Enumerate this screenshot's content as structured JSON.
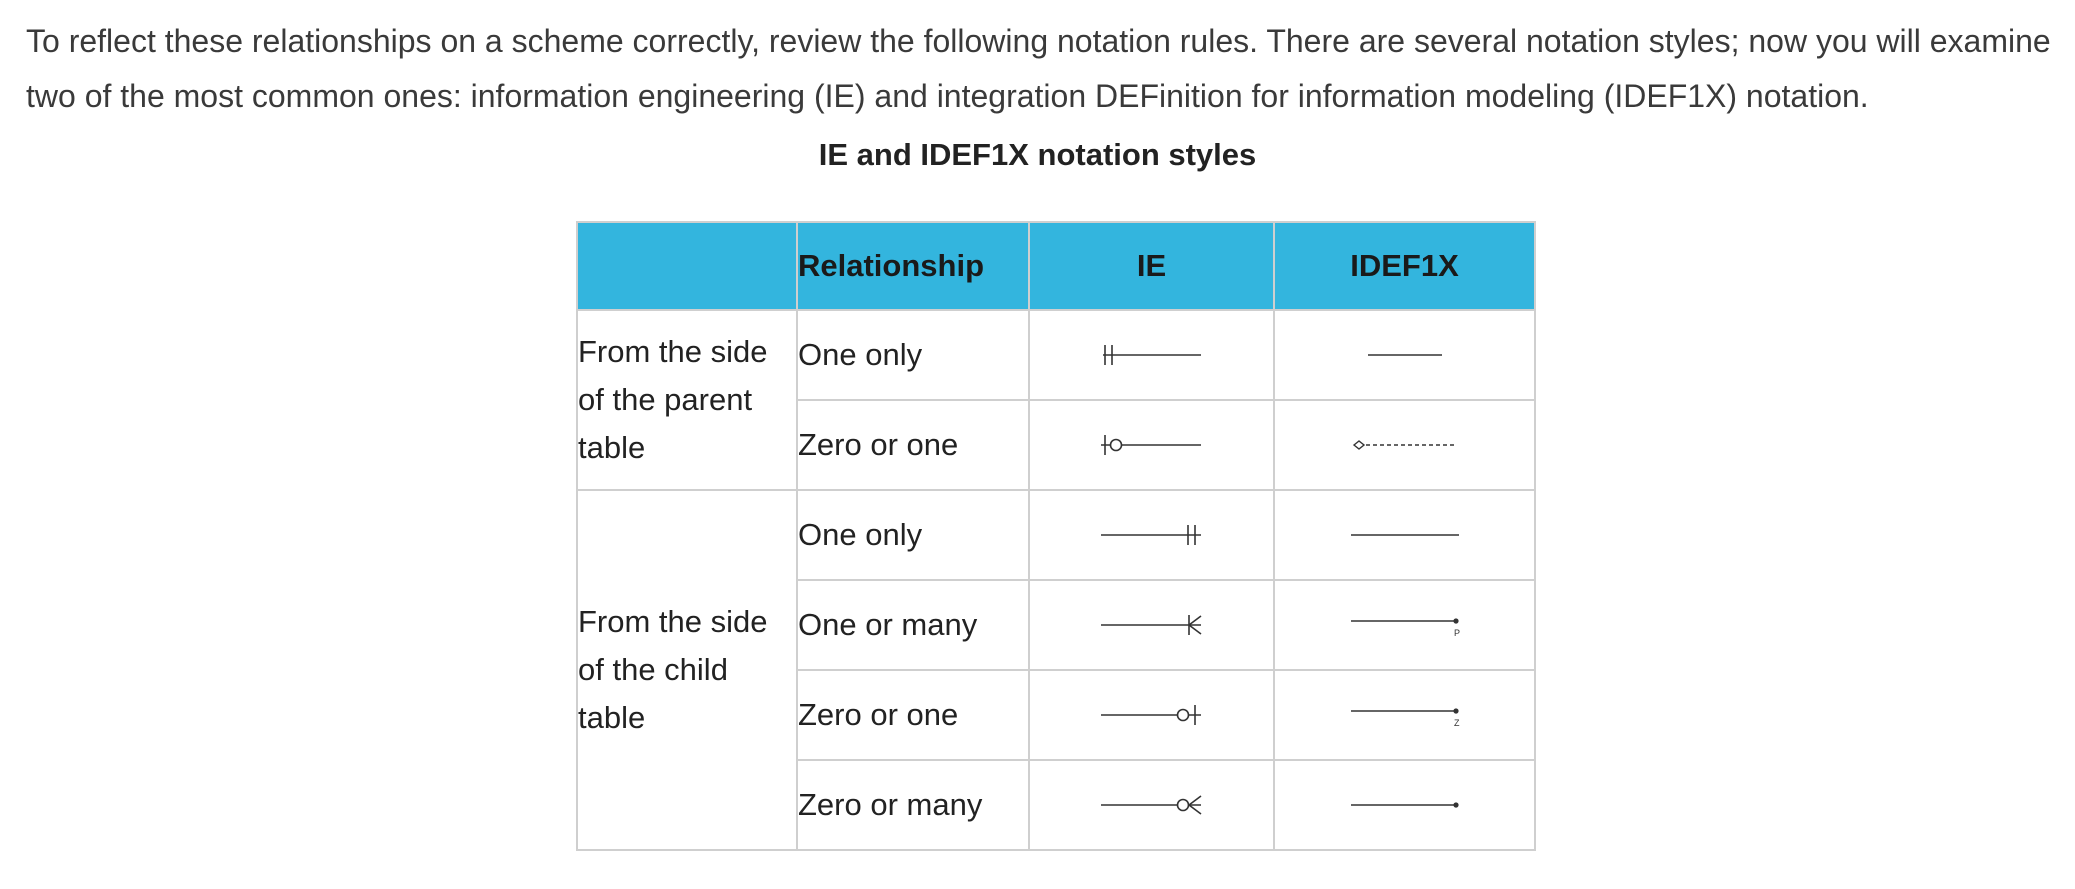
{
  "intro_text": "To reflect these relationships on a scheme correctly, review the following notation rules. There are several notation styles; now you will examine two of the most common ones: information engineering (IE) and integration DEFinition for information modeling (IDEF1X) notation.",
  "table_title": "IE and IDEF1X notation styles",
  "table": {
    "headers": {
      "blank": "",
      "relationship": "Relationship",
      "ie": "IE",
      "idef1x": "IDEF1X"
    },
    "groups": [
      {
        "label": "From the side of the parent table",
        "rows": [
          {
            "relationship": "One only",
            "ie_symbol": "one-only-parent-icon",
            "idef1x_symbol": "solid-line-icon"
          },
          {
            "relationship": "Zero or one",
            "ie_symbol": "zero-or-one-parent-icon",
            "idef1x_symbol": "dashed-diamond-line-icon"
          }
        ]
      },
      {
        "label": "From the side of the child table",
        "rows": [
          {
            "relationship": "One only",
            "ie_symbol": "one-only-child-icon",
            "idef1x_symbol": "solid-line-icon"
          },
          {
            "relationship": "One or many",
            "ie_symbol": "one-or-many-child-icon",
            "idef1x_symbol": "line-dot-p-icon",
            "idef1x_letter": "P"
          },
          {
            "relationship": "Zero or one",
            "ie_symbol": "zero-or-one-child-icon",
            "idef1x_symbol": "line-dot-z-icon",
            "idef1x_letter": "Z"
          },
          {
            "relationship": "Zero or many",
            "ie_symbol": "zero-or-many-child-icon",
            "idef1x_symbol": "line-dot-icon"
          }
        ]
      }
    ]
  }
}
